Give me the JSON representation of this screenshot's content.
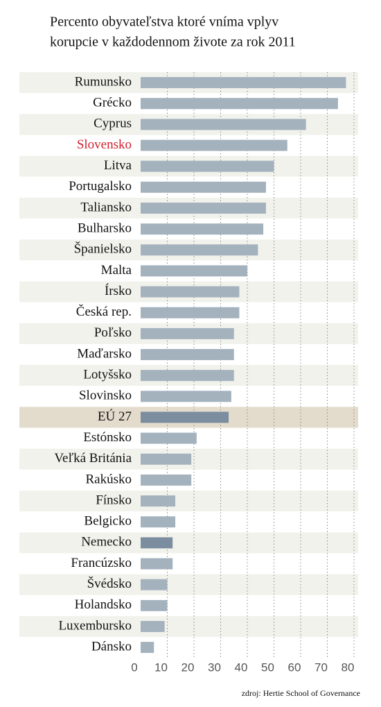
{
  "chart_data": {
    "type": "barh",
    "title": [
      "Percento obyvateľstva ktoré vníma vplyv",
      "korupcie v každodennom živote za rok 2011"
    ],
    "categories": [
      "Rumunsko",
      "Grécko",
      "Cyprus",
      "Slovensko",
      "Litva",
      "Portugalsko",
      "Taliansko",
      "Bulharsko",
      "Španielsko",
      "Malta",
      "Írsko",
      "Česká rep.",
      "Poľsko",
      "Maďarsko",
      "Lotyšsko",
      "Slovinsko",
      "EÚ 27",
      "Estónsko",
      "Veľká Británia",
      "Rakúsko",
      "Fínsko",
      "Belgicko",
      "Nemecko",
      "Francúzsko",
      "Švédsko",
      "Holandsko",
      "Luxembursko",
      "Dánsko"
    ],
    "values": [
      77,
      74,
      62,
      55,
      50,
      47,
      47,
      46,
      44,
      40,
      37,
      37,
      35,
      35,
      35,
      34,
      33,
      21,
      19,
      19,
      13,
      13,
      12,
      12,
      10,
      10,
      9,
      5
    ],
    "colors": [
      "#a4b2be",
      "#a4b2be",
      "#a4b2be",
      "#a4b2be",
      "#a4b2be",
      "#a4b2be",
      "#a4b2be",
      "#a4b2be",
      "#a4b2be",
      "#a4b2be",
      "#a4b2be",
      "#a4b2be",
      "#a4b2be",
      "#a4b2be",
      "#a4b2be",
      "#a4b2be",
      "#7b8d9e",
      "#a4b2be",
      "#a4b2be",
      "#a4b2be",
      "#a4b2be",
      "#a4b2be",
      "#7b8d9e",
      "#a4b2be",
      "#a4b2be",
      "#a4b2be",
      "#a4b2be",
      "#a4b2be"
    ],
    "label_colors": [
      "#111",
      "#111",
      "#111",
      "#d0202f",
      "#111",
      "#111",
      "#111",
      "#111",
      "#111",
      "#111",
      "#111",
      "#111",
      "#111",
      "#111",
      "#111",
      "#111",
      "#111",
      "#111",
      "#111",
      "#111",
      "#111",
      "#111",
      "#111",
      "#111",
      "#111",
      "#111",
      "#111",
      "#111"
    ],
    "row_colors": [
      "#f2f2ec",
      "#ffffff",
      "#f2f2ec",
      "#ffffff",
      "#f2f2ec",
      "#ffffff",
      "#f2f2ec",
      "#ffffff",
      "#f2f2ec",
      "#ffffff",
      "#f2f2ec",
      "#ffffff",
      "#f2f2ec",
      "#ffffff",
      "#f2f2ec",
      "#ffffff",
      "#e3dbcc",
      "#ffffff",
      "#f2f2ec",
      "#ffffff",
      "#f2f2ec",
      "#ffffff",
      "#f2f2ec",
      "#ffffff",
      "#f2f2ec",
      "#ffffff",
      "#f2f2ec",
      "#ffffff"
    ],
    "xlim": [
      0,
      80
    ],
    "xticks": [
      0,
      10,
      20,
      30,
      40,
      50,
      60,
      70,
      80
    ],
    "x_unit": "%",
    "grid": true,
    "source": "zdroj: Hertie School of Governance"
  }
}
